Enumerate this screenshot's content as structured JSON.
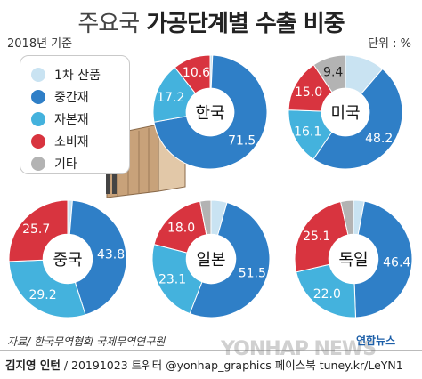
{
  "title": {
    "prefix": "주요국",
    "main": "가공단계별 수출 비중"
  },
  "subtitle": "2018년 기준",
  "unit": "단위 : %",
  "legend": [
    {
      "label": "1차 산품",
      "color": "#c9e3f2"
    },
    {
      "label": "중간재",
      "color": "#2f7fc7"
    },
    {
      "label": "자본재",
      "color": "#44b2dd"
    },
    {
      "label": "소비재",
      "color": "#d8343f"
    },
    {
      "label": "기타",
      "color": "#b3b3b3"
    }
  ],
  "chart_data": [
    {
      "type": "pie",
      "name": "한국",
      "slices": [
        {
          "category": "1차 산품",
          "value": 0.7,
          "label": ""
        },
        {
          "category": "중간재",
          "value": 71.5,
          "label": "71.5"
        },
        {
          "category": "자본재",
          "value": 17.2,
          "label": "17.2"
        },
        {
          "category": "소비재",
          "value": 10.6,
          "label": "10.6"
        }
      ]
    },
    {
      "type": "pie",
      "name": "미국",
      "slices": [
        {
          "category": "1차 산품",
          "value": 11.3,
          "label": ""
        },
        {
          "category": "중간재",
          "value": 48.2,
          "label": "48.2"
        },
        {
          "category": "자본재",
          "value": 16.1,
          "label": "16.1"
        },
        {
          "category": "소비재",
          "value": 15.0,
          "label": "15.0"
        },
        {
          "category": "기타",
          "value": 9.4,
          "label": "9.4"
        }
      ]
    },
    {
      "type": "pie",
      "name": "중국",
      "slices": [
        {
          "category": "1차 산품",
          "value": 1.3,
          "label": ""
        },
        {
          "category": "중간재",
          "value": 43.8,
          "label": "43.8"
        },
        {
          "category": "자본재",
          "value": 29.2,
          "label": "29.2"
        },
        {
          "category": "소비재",
          "value": 25.7,
          "label": "25.7"
        }
      ]
    },
    {
      "type": "pie",
      "name": "일본",
      "slices": [
        {
          "category": "1차 산품",
          "value": 4.4,
          "label": ""
        },
        {
          "category": "중간재",
          "value": 51.5,
          "label": "51.5"
        },
        {
          "category": "자본재",
          "value": 23.1,
          "label": "23.1"
        },
        {
          "category": "소비재",
          "value": 18.0,
          "label": "18.0"
        },
        {
          "category": "기타",
          "value": 3.0,
          "label": ""
        }
      ]
    },
    {
      "type": "pie",
      "name": "독일",
      "slices": [
        {
          "category": "1차 산품",
          "value": 3.0,
          "label": ""
        },
        {
          "category": "중간재",
          "value": 46.4,
          "label": "46.4"
        },
        {
          "category": "자본재",
          "value": 22.0,
          "label": "22.0"
        },
        {
          "category": "소비재",
          "value": 25.1,
          "label": "25.1"
        },
        {
          "category": "기타",
          "value": 3.5,
          "label": ""
        }
      ]
    }
  ],
  "source": "자료/ 한국무역협회 국제무역연구원",
  "credit": {
    "author": "김지영 인턴",
    "rest": "/ 20191023 트위터 @yonhap_graphics 페이스북 tuney.kr/LeYN1"
  },
  "watermark": "YONHAP NEWS",
  "logo": "연합뉴스"
}
